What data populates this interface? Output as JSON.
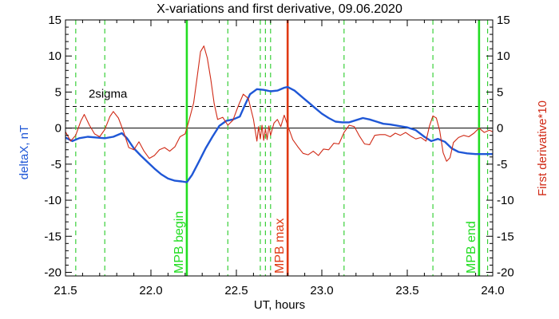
{
  "chart_data": {
    "type": "line",
    "title": "X-variations and first derivative, 09.06.2020",
    "xlabel": "UT, hours",
    "ylabel_left": "deltaX, nT",
    "ylabel_right": "First derivative*10",
    "xlim": [
      21.5,
      24.0
    ],
    "ylim": [
      -20.5,
      15
    ],
    "xticks": [
      "21.5",
      "22.0",
      "22.5",
      "23.0",
      "23.5",
      "24.0"
    ],
    "yticks": [
      "-20",
      "-15",
      "-10",
      "-5",
      "0",
      "5",
      "10",
      "15"
    ],
    "grid": false,
    "colors": {
      "deltaX": "#1f57d6",
      "derivative": "#d02a16",
      "green_dashed": "#39d039",
      "mpb_lines": "#22dd22",
      "mpb_max": "#e03a14",
      "threshold": "#000000",
      "axes": "#000000"
    },
    "threshold": {
      "label": "2sigma",
      "value": 3.0
    },
    "zero_line": 0,
    "vertical_markers": [
      {
        "x": 22.21,
        "label": "MPB begin",
        "style": "solid",
        "color": "green"
      },
      {
        "x": 22.8,
        "label": "MPB max",
        "style": "solid",
        "color": "red"
      },
      {
        "x": 23.92,
        "label": "MPB end",
        "style": "solid",
        "color": "green"
      }
    ],
    "dashed_markers": [
      21.56,
      21.73,
      22.45,
      22.64,
      22.67,
      22.7,
      23.13,
      23.65,
      23.97
    ],
    "series": [
      {
        "key": "deltaX",
        "points": [
          [
            21.5,
            -1.3
          ],
          [
            21.54,
            -1.8
          ],
          [
            21.58,
            -1.4
          ],
          [
            21.63,
            -1.2
          ],
          [
            21.68,
            -1.3
          ],
          [
            21.73,
            -1.4
          ],
          [
            21.78,
            -1.2
          ],
          [
            21.83,
            -0.7
          ],
          [
            21.86,
            -1.4
          ],
          [
            21.9,
            -2.8
          ],
          [
            21.94,
            -3.8
          ],
          [
            21.98,
            -4.7
          ],
          [
            22.02,
            -5.6
          ],
          [
            22.06,
            -6.4
          ],
          [
            22.1,
            -7.0
          ],
          [
            22.14,
            -7.3
          ],
          [
            22.18,
            -7.4
          ],
          [
            22.21,
            -7.5
          ],
          [
            22.24,
            -6.5
          ],
          [
            22.28,
            -4.7
          ],
          [
            22.32,
            -2.8
          ],
          [
            22.36,
            -1.2
          ],
          [
            22.4,
            0.3
          ],
          [
            22.44,
            1.0
          ],
          [
            22.48,
            1.2
          ],
          [
            22.52,
            1.6
          ],
          [
            22.55,
            3.2
          ],
          [
            22.58,
            4.7
          ],
          [
            22.62,
            5.4
          ],
          [
            22.66,
            5.3
          ],
          [
            22.7,
            5.1
          ],
          [
            22.74,
            5.2
          ],
          [
            22.78,
            5.6
          ],
          [
            22.8,
            5.7
          ],
          [
            22.84,
            5.2
          ],
          [
            22.88,
            4.4
          ],
          [
            22.92,
            3.6
          ],
          [
            22.96,
            2.8
          ],
          [
            23.0,
            2.0
          ],
          [
            23.04,
            1.4
          ],
          [
            23.08,
            0.9
          ],
          [
            23.12,
            0.8
          ],
          [
            23.16,
            0.8
          ],
          [
            23.2,
            1.1
          ],
          [
            23.24,
            1.4
          ],
          [
            23.28,
            1.2
          ],
          [
            23.32,
            0.9
          ],
          [
            23.36,
            0.6
          ],
          [
            23.4,
            0.5
          ],
          [
            23.45,
            0.3
          ],
          [
            23.5,
            0.1
          ],
          [
            23.55,
            -0.3
          ],
          [
            23.6,
            -1.2
          ],
          [
            23.64,
            -1.8
          ],
          [
            23.68,
            -1.5
          ],
          [
            23.72,
            -1.9
          ],
          [
            23.76,
            -2.8
          ],
          [
            23.8,
            -3.3
          ],
          [
            23.85,
            -3.5
          ],
          [
            23.9,
            -3.6
          ],
          [
            23.95,
            -3.6
          ],
          [
            24.0,
            -3.6
          ]
        ]
      },
      {
        "key": "derivative",
        "points": [
          [
            21.5,
            -0.5
          ],
          [
            21.53,
            -1.8
          ],
          [
            21.56,
            -1.0
          ],
          [
            21.59,
            1.0
          ],
          [
            21.61,
            1.9
          ],
          [
            21.64,
            0.4
          ],
          [
            21.67,
            -0.8
          ],
          [
            21.7,
            -1.2
          ],
          [
            21.73,
            -0.2
          ],
          [
            21.76,
            1.6
          ],
          [
            21.78,
            2.3
          ],
          [
            21.81,
            1.4
          ],
          [
            21.84,
            -0.5
          ],
          [
            21.87,
            -2.7
          ],
          [
            21.9,
            -3.0
          ],
          [
            21.93,
            -1.9
          ],
          [
            21.96,
            -3.2
          ],
          [
            21.99,
            -4.2
          ],
          [
            22.02,
            -3.8
          ],
          [
            22.05,
            -3.0
          ],
          [
            22.08,
            -2.7
          ],
          [
            22.11,
            -3.2
          ],
          [
            22.14,
            -2.6
          ],
          [
            22.17,
            -1.2
          ],
          [
            22.2,
            -0.8
          ],
          [
            22.22,
            0.8
          ],
          [
            22.25,
            3.5
          ],
          [
            22.27,
            7.0
          ],
          [
            22.29,
            10.6
          ],
          [
            22.31,
            11.4
          ],
          [
            22.33,
            9.7
          ],
          [
            22.35,
            6.8
          ],
          [
            22.37,
            3.4
          ],
          [
            22.39,
            1.2
          ],
          [
            22.42,
            1.5
          ],
          [
            22.45,
            0.4
          ],
          [
            22.48,
            1.1
          ],
          [
            22.51,
            3.0
          ],
          [
            22.54,
            4.7
          ],
          [
            22.57,
            4.1
          ],
          [
            22.6,
            1.2
          ],
          [
            22.62,
            -1.8
          ],
          [
            22.63,
            0.2
          ],
          [
            22.64,
            -1.5
          ],
          [
            22.65,
            0.4
          ],
          [
            22.66,
            -1.7
          ],
          [
            22.67,
            -0.1
          ],
          [
            22.68,
            -1.6
          ],
          [
            22.69,
            0.3
          ],
          [
            22.7,
            -1.0
          ],
          [
            22.72,
            0.7
          ],
          [
            22.74,
            1.2
          ],
          [
            22.76,
            0.2
          ],
          [
            22.78,
            1.8
          ],
          [
            22.8,
            0.4
          ],
          [
            22.83,
            -1.6
          ],
          [
            22.86,
            -2.6
          ],
          [
            22.89,
            -3.5
          ],
          [
            22.92,
            -3.7
          ],
          [
            22.95,
            -3.2
          ],
          [
            22.98,
            -3.8
          ],
          [
            23.01,
            -2.9
          ],
          [
            23.04,
            -3.0
          ],
          [
            23.07,
            -2.1
          ],
          [
            23.1,
            -2.2
          ],
          [
            23.13,
            -0.6
          ],
          [
            23.16,
            0.4
          ],
          [
            23.19,
            0.2
          ],
          [
            23.22,
            -1.1
          ],
          [
            23.25,
            -2.2
          ],
          [
            23.28,
            -2.3
          ],
          [
            23.31,
            -1.0
          ],
          [
            23.34,
            -0.9
          ],
          [
            23.37,
            -0.9
          ],
          [
            23.4,
            -1.2
          ],
          [
            23.43,
            -0.7
          ],
          [
            23.46,
            -1.0
          ],
          [
            23.49,
            -0.6
          ],
          [
            23.52,
            -1.1
          ],
          [
            23.55,
            -1.5
          ],
          [
            23.58,
            -1.3
          ],
          [
            23.61,
            -1.8
          ],
          [
            23.63,
            0.3
          ],
          [
            23.65,
            1.7
          ],
          [
            23.67,
            1.4
          ],
          [
            23.69,
            -0.4
          ],
          [
            23.71,
            -3.4
          ],
          [
            23.73,
            -4.6
          ],
          [
            23.75,
            -4.1
          ],
          [
            23.77,
            -2.0
          ],
          [
            23.8,
            -1.3
          ],
          [
            23.83,
            -1.0
          ],
          [
            23.86,
            -1.2
          ],
          [
            23.89,
            -0.7
          ],
          [
            23.92,
            0.0
          ],
          [
            23.95,
            -0.6
          ],
          [
            23.98,
            -0.3
          ],
          [
            24.0,
            -0.5
          ]
        ]
      }
    ]
  }
}
